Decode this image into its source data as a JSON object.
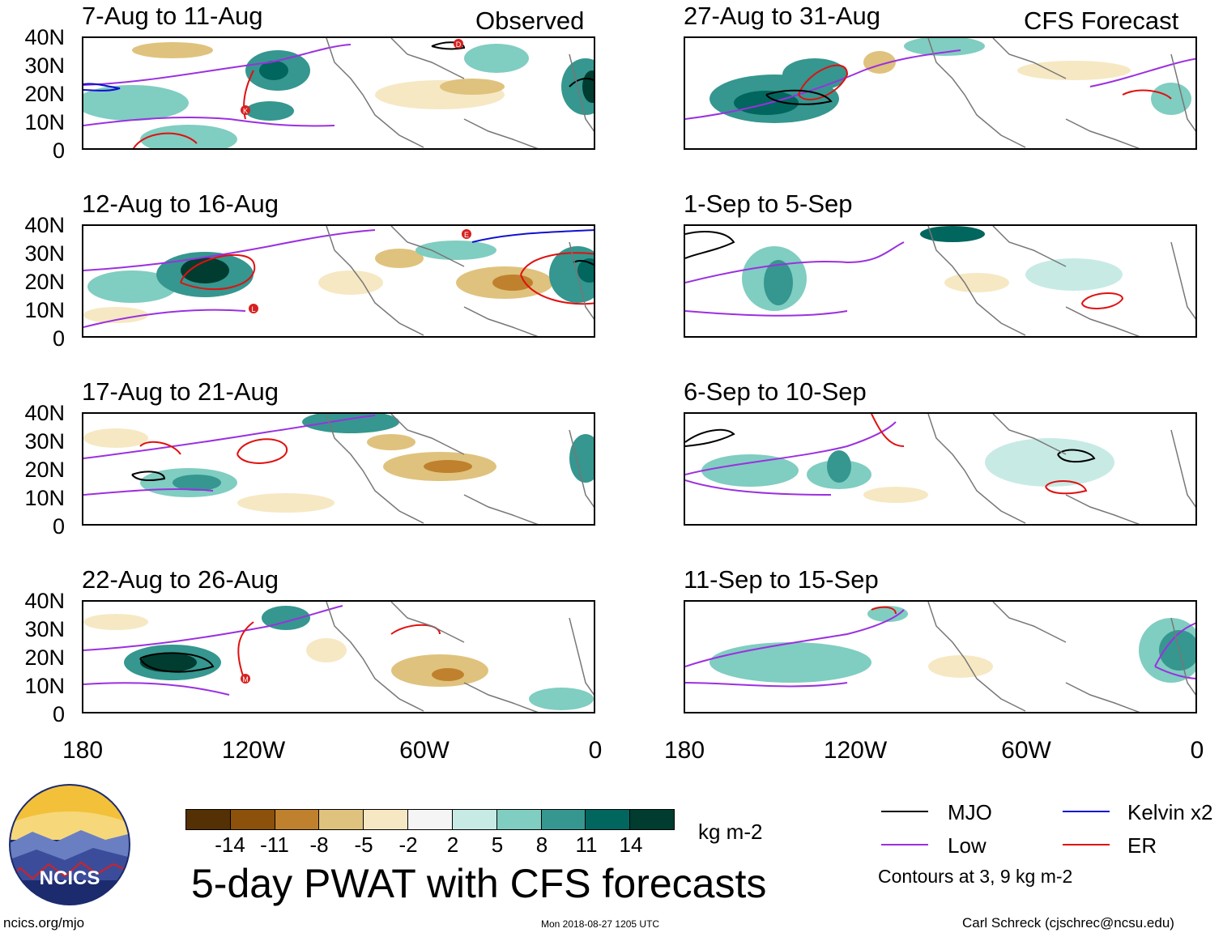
{
  "headers": {
    "observed": "Observed",
    "forecast": "CFS Forecast"
  },
  "panels_left": [
    {
      "title": "7-Aug to 11-Aug"
    },
    {
      "title": "12-Aug to 16-Aug"
    },
    {
      "title": "17-Aug to 21-Aug"
    },
    {
      "title": "22-Aug to 26-Aug"
    }
  ],
  "panels_right": [
    {
      "title": "27-Aug to 31-Aug"
    },
    {
      "title": "1-Sep to 5-Sep"
    },
    {
      "title": "6-Sep to 10-Sep"
    },
    {
      "title": "11-Sep to 15-Sep"
    }
  ],
  "lat_ticks": [
    "40N",
    "30N",
    "20N",
    "10N",
    "0"
  ],
  "lon_ticks": [
    "180",
    "120W",
    "60W",
    "0"
  ],
  "colorbar": {
    "colors": [
      "#543005",
      "#8c510a",
      "#bf812d",
      "#dfc27d",
      "#f6e8c3",
      "#f5f5f5",
      "#c7eae5",
      "#80cdc1",
      "#35978f",
      "#01665e",
      "#003c30"
    ],
    "ticks": [
      "-14",
      "-11",
      "-8",
      "-5",
      "-2",
      "2",
      "5",
      "8",
      "11",
      "14"
    ],
    "units": "kg m-2"
  },
  "title": "5-day PWAT with CFS forecasts",
  "legend": {
    "items": [
      {
        "label": "MJO",
        "color": "#000000"
      },
      {
        "label": "Kelvin x2",
        "color": "#1010d0"
      },
      {
        "label": "Low",
        "color": "#9b30e0"
      },
      {
        "label": "ER",
        "color": "#e01010"
      }
    ],
    "note": "Contours at 3, 9 kg m-2"
  },
  "logo_text": "NCICS",
  "footer": {
    "left": "ncics.org/mjo",
    "middle": "Mon 2018-08-27 1205 UTC",
    "right": "Carl Schreck (cjschrec@ncsu.edu)"
  },
  "storm_markers": [
    {
      "panel": "7-Aug to 11-Aug",
      "label": "D"
    },
    {
      "panel": "7-Aug to 11-Aug",
      "label": "K"
    },
    {
      "panel": "12-Aug to 16-Aug",
      "label": "E"
    },
    {
      "panel": "12-Aug to 16-Aug",
      "label": "L"
    },
    {
      "panel": "22-Aug to 26-Aug",
      "label": "M"
    }
  ]
}
